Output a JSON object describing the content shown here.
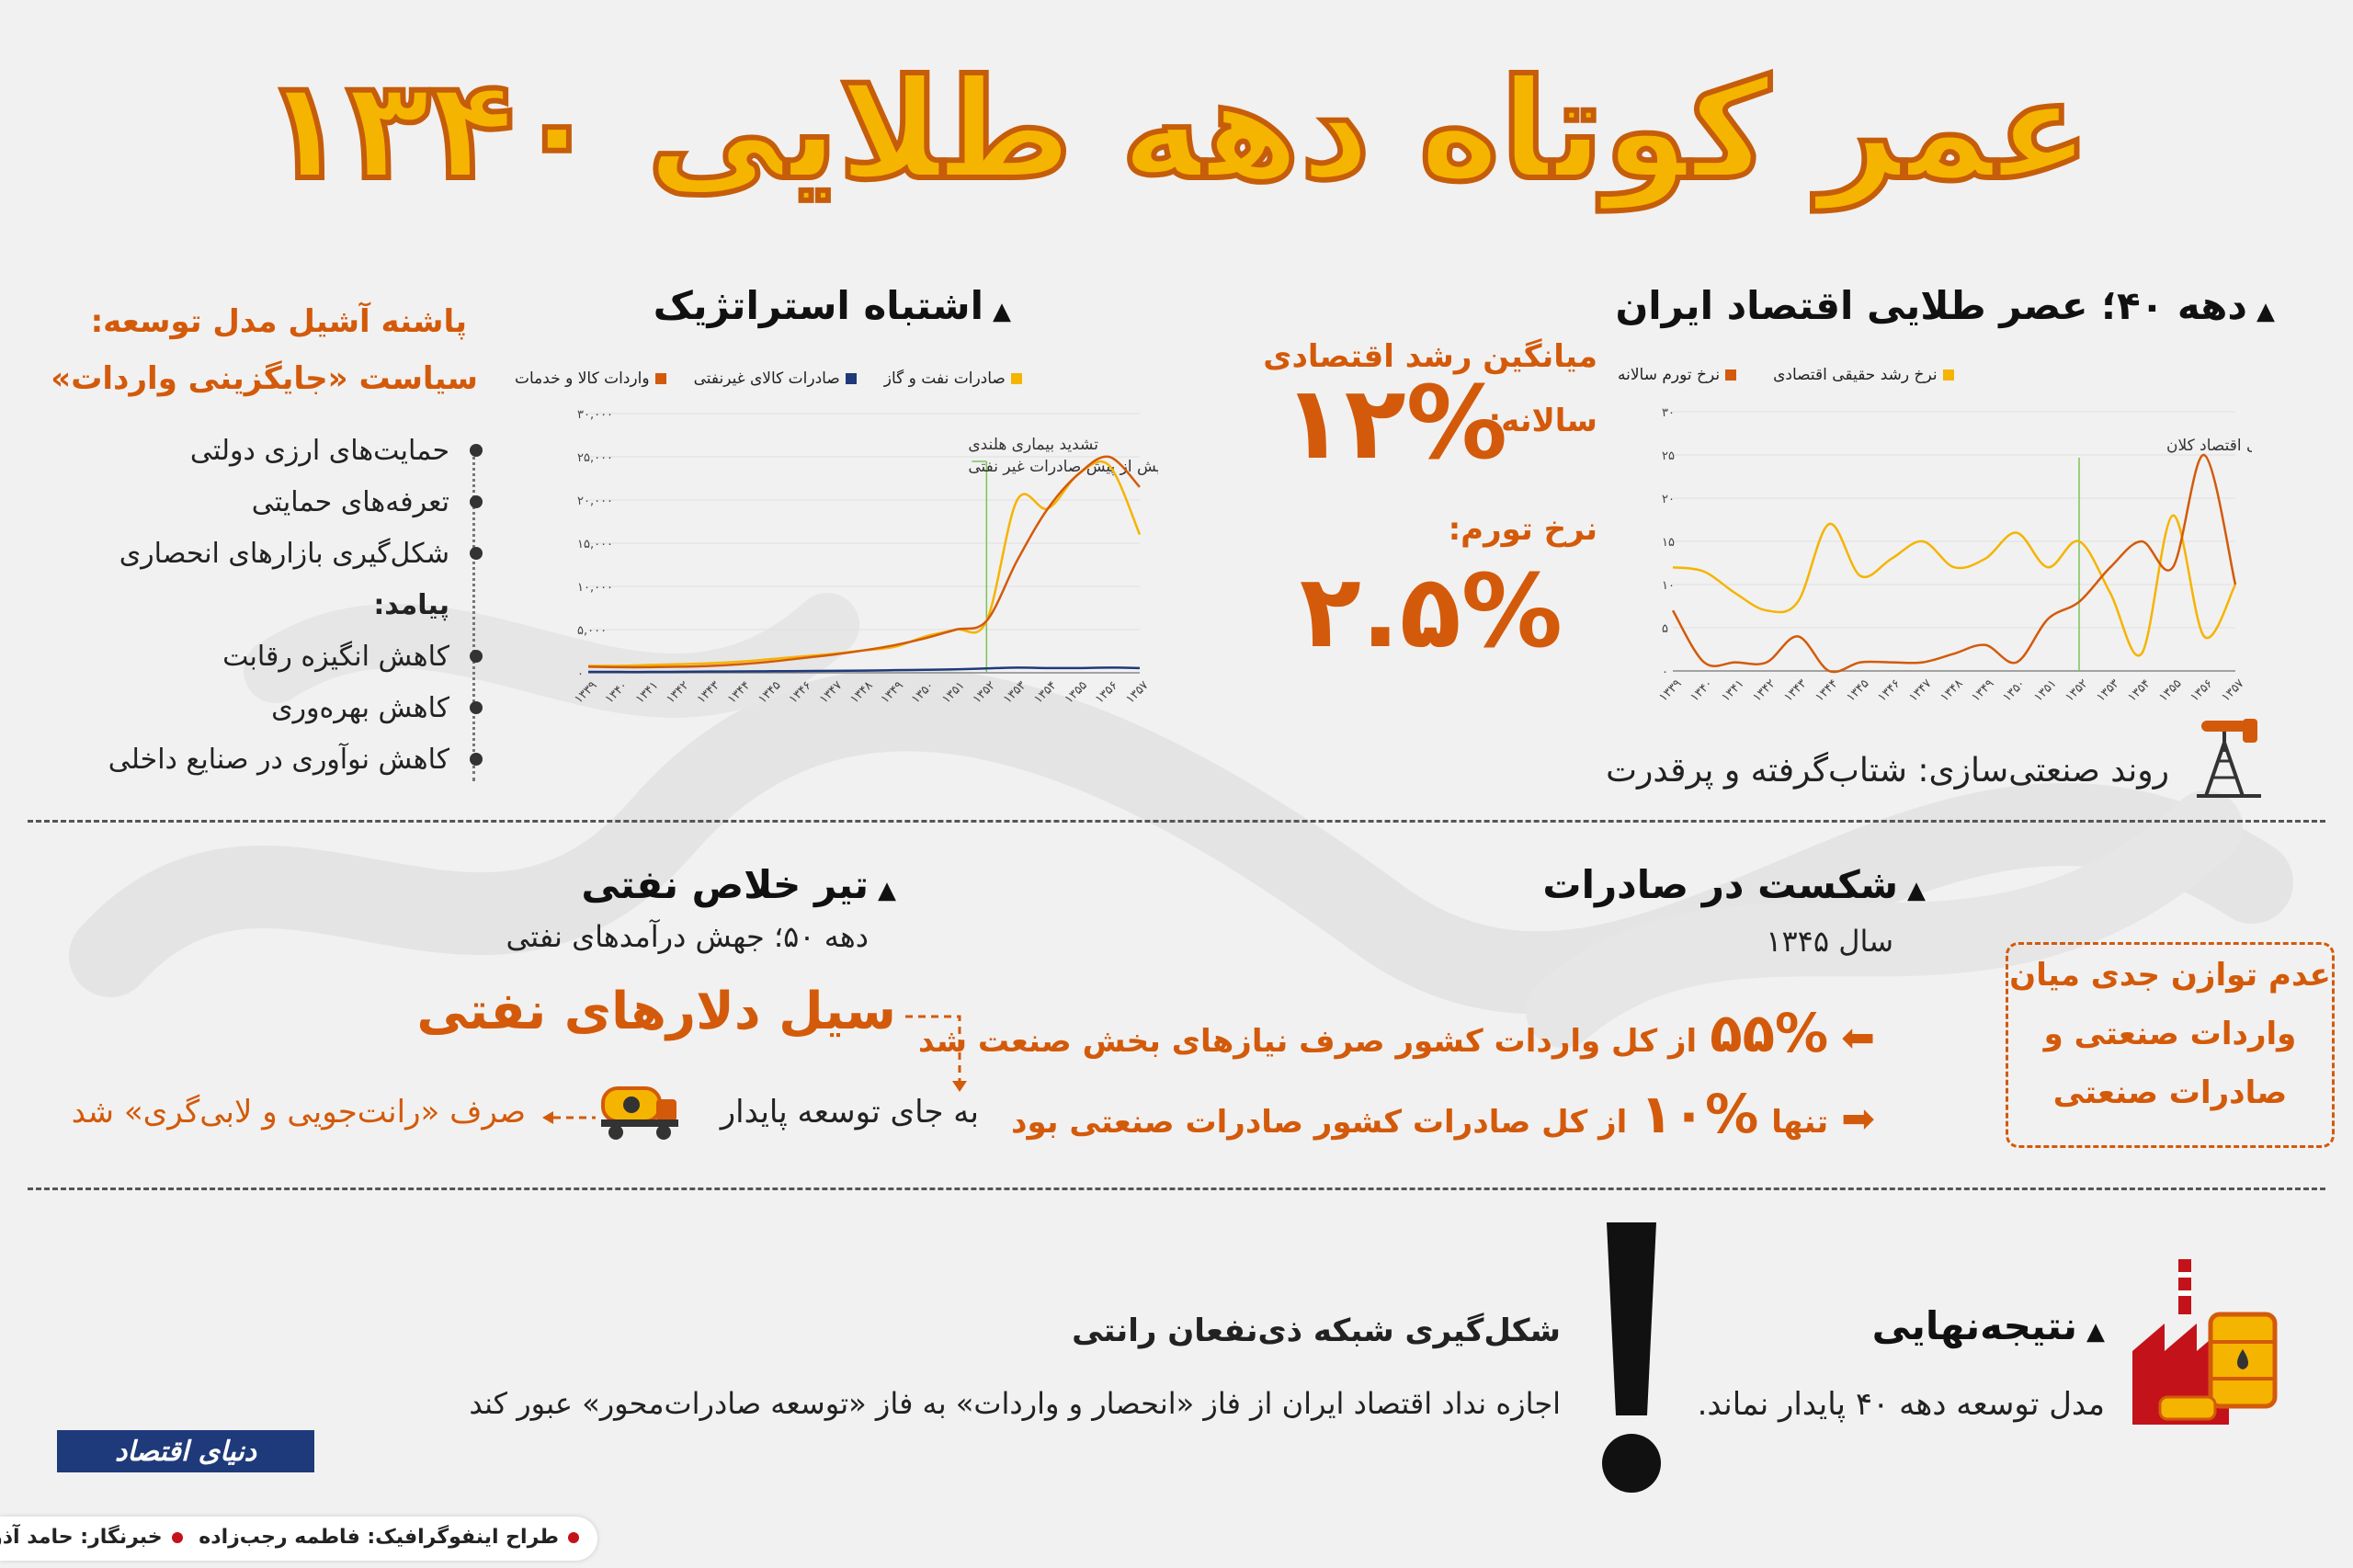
{
  "title": "عمر کوتاه دهه طلایی ۱۳۴۰",
  "golden_age": {
    "heading": "دهه ۴۰؛ عصر طلایی اقتصاد ایران",
    "growth_label": "میانگین رشد اقتصادی",
    "annual_label": "سالانه:",
    "growth_value": "۱۲%",
    "inflation_label": "نرخ تورم:",
    "inflation_value": "۲.۵%",
    "industrialization": "روند صنعتی‌سازی: شتاب‌گرفته و پرقدرت"
  },
  "strategic_mistake": {
    "heading": "اشتباه استراتژیک"
  },
  "policy": {
    "heading_line1": "پاشنه آشیل مدل توسعه:",
    "heading_line2": "سیاست «جایگزینی واردات»",
    "items": [
      "حمایت‌های ارزی دولتی",
      "تعرفه‌های حمایتی",
      "شکل‌گیری بازارهای انحصاری"
    ],
    "consequence_label": "پیامد:",
    "consequences": [
      "کاهش انگیزه رقابت",
      "کاهش بهره‌وری",
      "کاهش نوآوری در صنایع داخلی"
    ]
  },
  "oil_rescue": {
    "heading": "تیر خلاص نفتی",
    "subtitle": "دهه ۵۰؛ جهش درآمدهای نفتی",
    "flood": "سیل دلارهای نفتی",
    "instead": "به جای توسعه پایدار",
    "spent": "صرف «رانت‌جویی و لابی‌گری» شد"
  },
  "export_failure": {
    "heading": "شکست در صادرات",
    "year": "سال ۱۳۴۵",
    "line1_pct": "۵۵%",
    "line1_text": "از کل واردات کشور صرف نیازهای بخش صنعت شد",
    "line2_prefix": "تنها",
    "line2_pct": "۱۰%",
    "line2_text": "از کل صادرات کشور صادرات صنعتی بود",
    "box_lines": [
      "عدم توازن جدی میان",
      "واردات صنعتی و",
      "صادرات صنعتی"
    ]
  },
  "conclusion": {
    "heading": "نتیجه‌نهایی",
    "text": "مدل توسعه دهه ۴۰ پایدار نماند.",
    "network_title": "شکل‌گیری شبکه ذی‌نفعان رانتی",
    "network_text": "اجازه نداد اقتصاد ایران از فاز «انحصار و واردات» به فاز «توسعه صادرات‌محور» عبور کند"
  },
  "brand": {
    "logo": "دنیای اقتصاد"
  },
  "footer": {
    "designer": "طراح اینفوگرافیک: فاطمه رجب‌زاده",
    "reporter": "خبرنگار: حامد آذرکون"
  },
  "colors": {
    "orange": "#d35a0a",
    "gold": "#f5b400",
    "navy": "#1f3a7a",
    "annotation_line": "#7cc25b"
  },
  "chart_data": [
    {
      "type": "line",
      "x": [
        "۱۳۳۹",
        "۱۳۴۰",
        "۱۳۴۱",
        "۱۳۴۲",
        "۱۳۴۳",
        "۱۳۴۴",
        "۱۳۴۵",
        "۱۳۴۶",
        "۱۳۴۷",
        "۱۳۴۸",
        "۱۳۴۹",
        "۱۳۵۰",
        "۱۳۵۱",
        "۱۳۵۲",
        "۱۳۵۳",
        "۱۳۵۴",
        "۱۳۵۵",
        "۱۳۵۶",
        "۱۳۵۷"
      ],
      "y_ticks": [
        "۰",
        "۵",
        "۱۰",
        "۱۵",
        "۲۰",
        "۲۵",
        "۳۰"
      ],
      "ylim": [
        0,
        30
      ],
      "series": [
        {
          "name": "نرخ رشد حقیقی اقتصادی",
          "color": "#f5b400",
          "values": [
            12,
            11.5,
            9,
            7,
            8,
            17,
            11,
            13,
            15,
            12,
            13,
            16,
            12,
            15,
            9,
            2,
            18,
            4,
            10
          ]
        },
        {
          "name": "نرخ تورم سالانه",
          "color": "#d35a0a",
          "values": [
            7,
            1,
            1,
            1,
            4,
            0,
            1,
            1,
            1,
            2,
            3,
            1,
            6,
            8,
            12,
            15,
            12,
            25,
            10
          ]
        }
      ],
      "annotation": {
        "x": "۱۳۵۲",
        "label": "آغاز بی‌ثباتی اقتصاد کلان"
      },
      "grid": true,
      "legend": "top"
    },
    {
      "type": "line",
      "x": [
        "۱۳۳۹",
        "۱۳۴۰",
        "۱۳۴۱",
        "۱۳۴۲",
        "۱۳۴۳",
        "۱۳۴۴",
        "۱۳۴۵",
        "۱۳۴۶",
        "۱۳۴۷",
        "۱۳۴۸",
        "۱۳۴۹",
        "۱۳۵۰",
        "۱۳۵۱",
        "۱۳۵۲",
        "۱۳۵۳",
        "۱۳۵۴",
        "۱۳۵۵",
        "۱۳۵۶",
        "۱۳۵۷"
      ],
      "y_ticks": [
        "۰",
        "۵,۰۰۰",
        "۱۰,۰۰۰",
        "۱۵,۰۰۰",
        "۲۰,۰۰۰",
        "۲۵,۰۰۰",
        "۳۰,۰۰۰"
      ],
      "ylim": [
        0,
        30000
      ],
      "series": [
        {
          "name": "صادرات نفت و گاز",
          "color": "#f5b400",
          "values": [
            800,
            800,
            900,
            1000,
            1100,
            1300,
            1600,
            1900,
            2200,
            2600,
            3000,
            4200,
            5000,
            6000,
            20000,
            19000,
            23000,
            24000,
            16000
          ]
        },
        {
          "name": "صادرات کالای غیرنفتی",
          "color": "#1f3a7a",
          "values": [
            100,
            100,
            100,
            120,
            140,
            160,
            180,
            200,
            220,
            250,
            300,
            350,
            400,
            500,
            600,
            550,
            550,
            600,
            550
          ]
        },
        {
          "name": "واردات کالا و خدمات",
          "color": "#d35a0a",
          "values": [
            700,
            650,
            650,
            700,
            800,
            1000,
            1300,
            1700,
            2100,
            2600,
            3200,
            4000,
            5000,
            6000,
            13000,
            19000,
            23000,
            25000,
            21500
          ]
        }
      ],
      "annotation": {
        "x": "۱۳۵۲",
        "label_line1": "تشدید بیماری هلندی",
        "label_line2": "و سرکوب بیش از پیش صادرات غیر نفتی"
      },
      "grid": true,
      "legend": "top"
    }
  ]
}
